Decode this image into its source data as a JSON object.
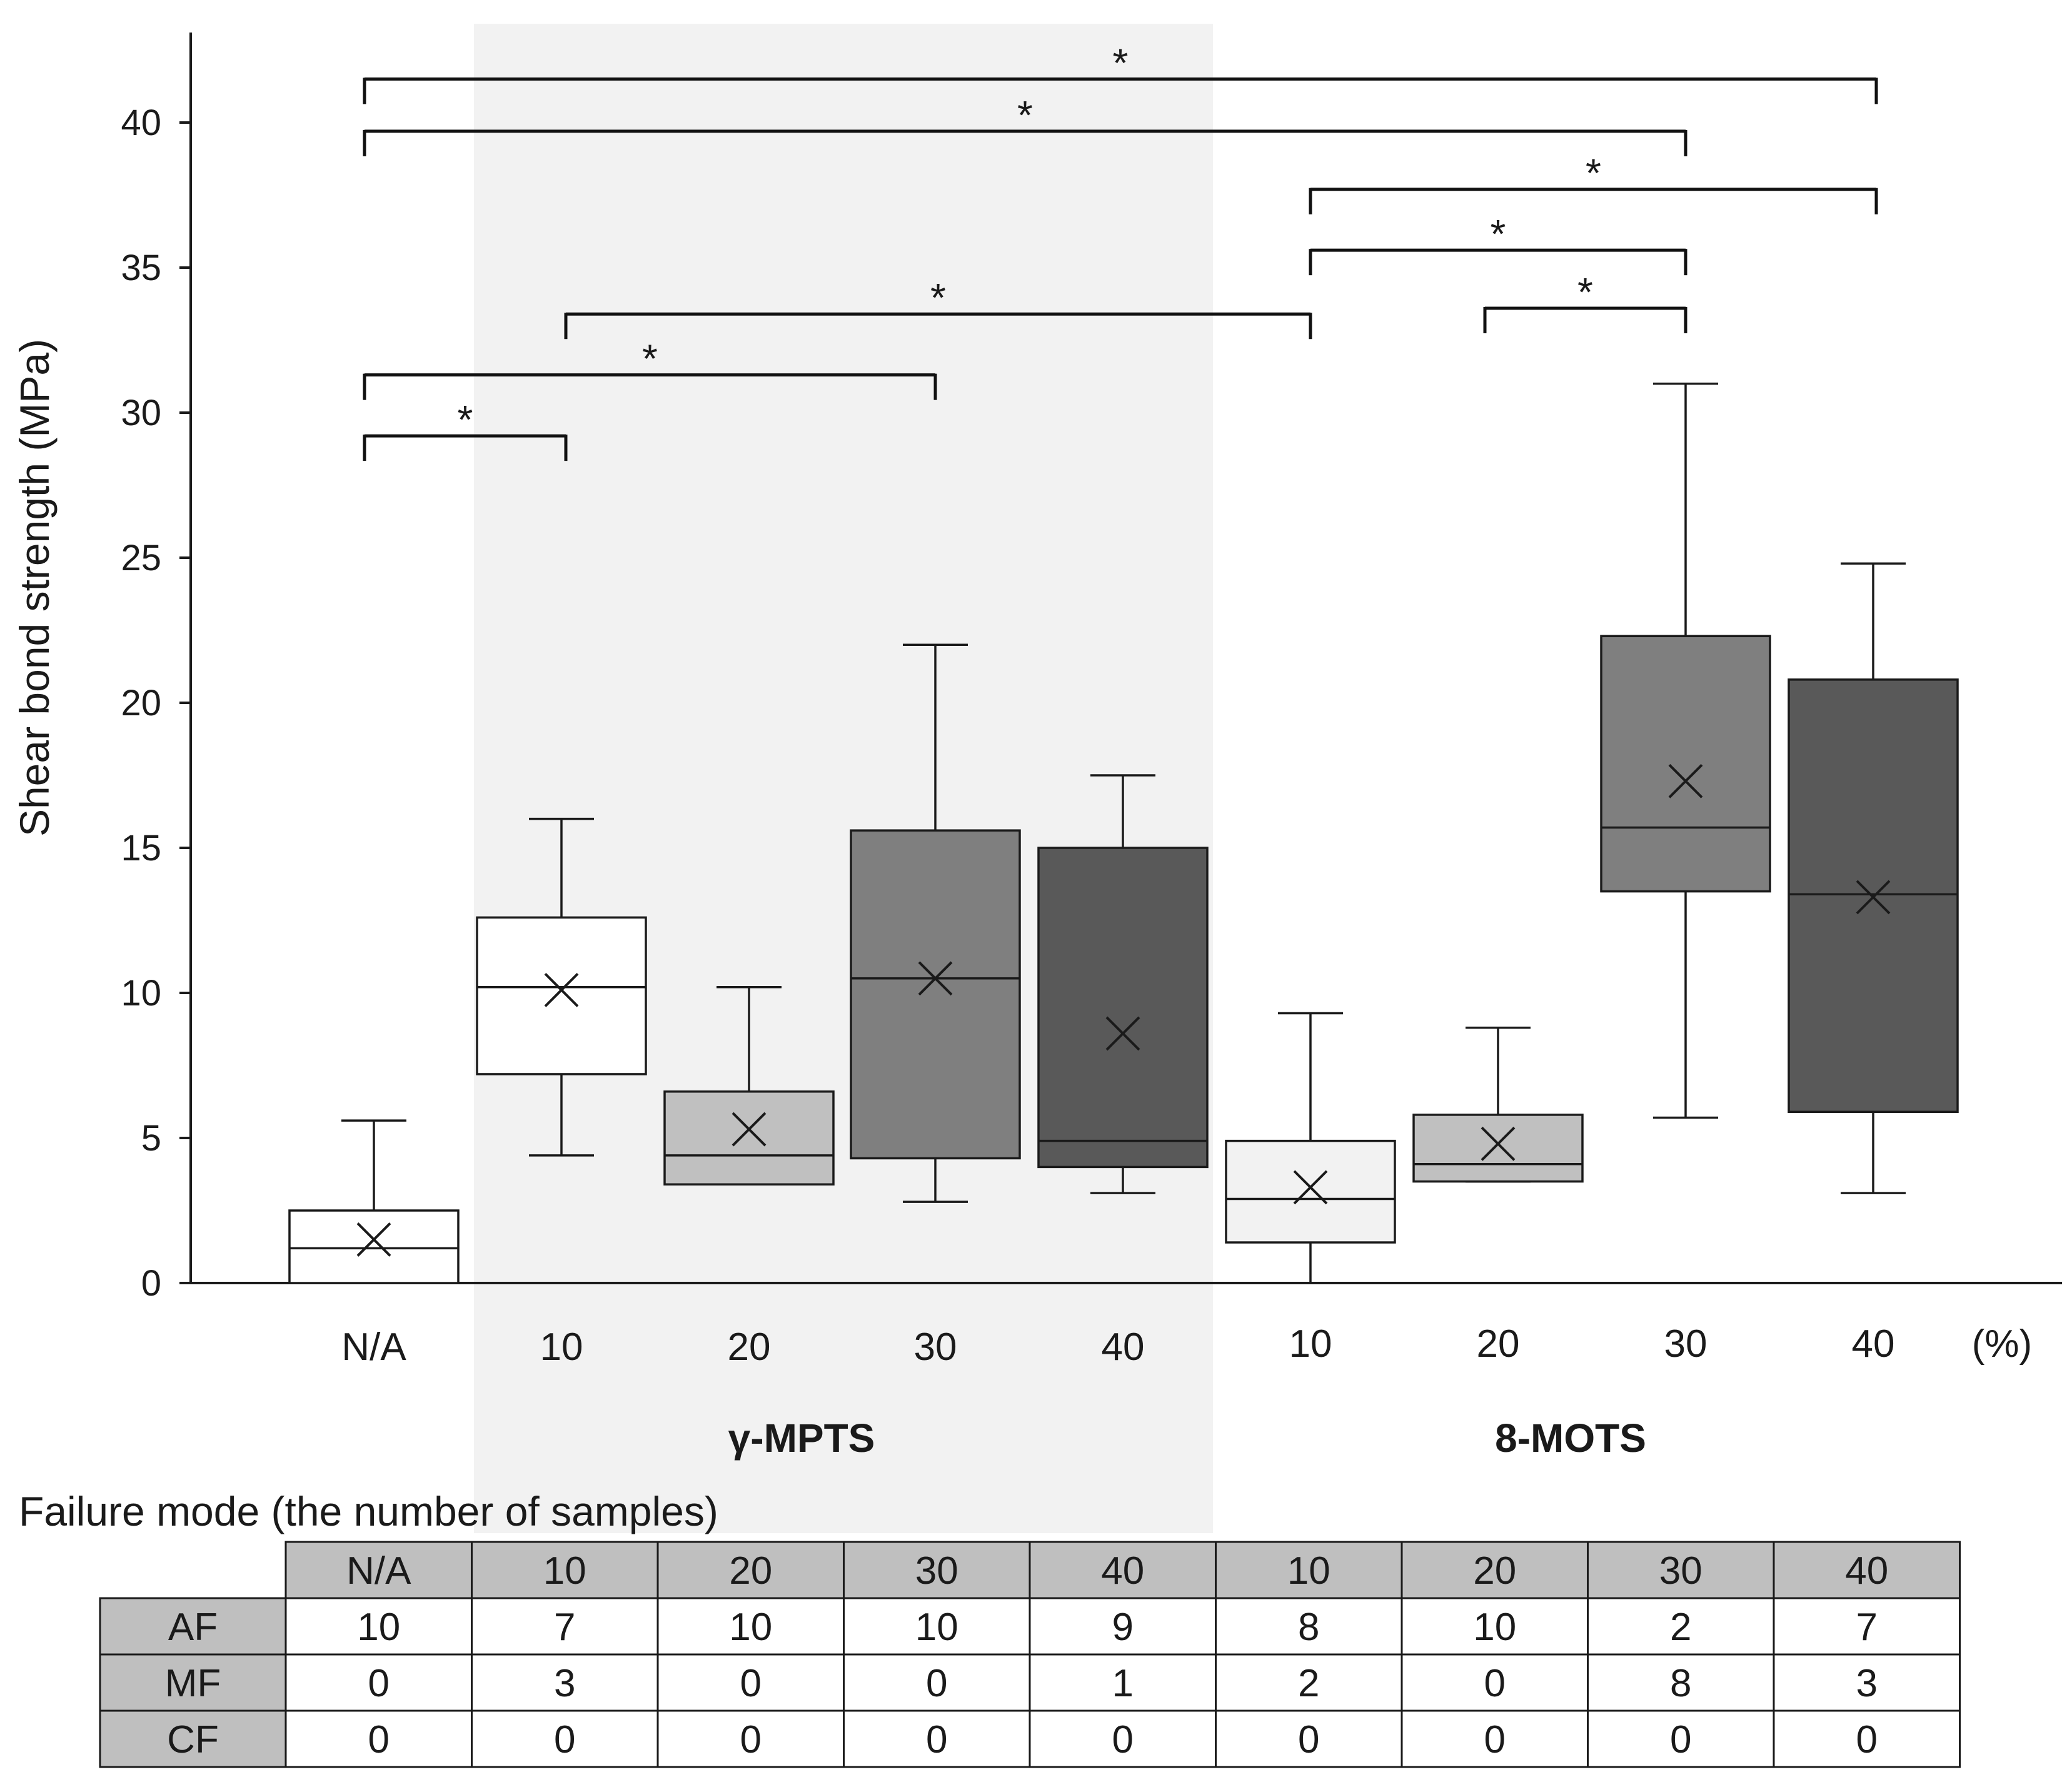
{
  "chart_data": {
    "type": "box",
    "ylabel": "Shear bond strength (MPa)",
    "ylim": [
      0,
      43
    ],
    "yticks": [
      0,
      5,
      10,
      15,
      20,
      25,
      30,
      35,
      40
    ],
    "x_unit": "(%)",
    "categories": [
      "N/A",
      "10",
      "20",
      "30",
      "40",
      "10",
      "20",
      "30",
      "40"
    ],
    "groups": [
      {
        "name": "γ-MPTS",
        "categories": [
          "10",
          "20",
          "30",
          "40"
        ],
        "shaded": true
      },
      {
        "name": "8-MOTS",
        "categories": [
          "10",
          "20",
          "30",
          "40"
        ],
        "shaded": false
      }
    ],
    "boxes": [
      {
        "label": "N/A",
        "whisker_low": 0,
        "q1": 0,
        "median": 1.2,
        "q3": 2.5,
        "whisker_high": 5.6,
        "mean": 1.5,
        "color": "#ffffff"
      },
      {
        "label": "γ-MPTS 10",
        "whisker_low": 4.4,
        "q1": 7.2,
        "median": 10.2,
        "q3": 12.6,
        "whisker_high": 16.0,
        "mean": 10.1,
        "color": "#ffffff"
      },
      {
        "label": "γ-MPTS 20",
        "whisker_low": 3.4,
        "q1": 3.4,
        "median": 4.4,
        "q3": 6.6,
        "whisker_high": 10.2,
        "mean": 5.3,
        "color": "#c0c0c0"
      },
      {
        "label": "γ-MPTS 30",
        "whisker_low": 2.8,
        "q1": 4.3,
        "median": 10.5,
        "q3": 15.6,
        "whisker_high": 22.0,
        "mean": 10.5,
        "color": "#7f7f7f"
      },
      {
        "label": "γ-MPTS 40",
        "whisker_low": 3.1,
        "q1": 4.0,
        "median": 4.9,
        "q3": 15.0,
        "whisker_high": 17.5,
        "mean": 8.6,
        "color": "#595959"
      },
      {
        "label": "8-MOTS 10",
        "whisker_low": 0,
        "q1": 1.4,
        "median": 2.9,
        "q3": 4.9,
        "whisker_high": 9.3,
        "mean": 3.3,
        "color": "#f2f2f2"
      },
      {
        "label": "8-MOTS 20",
        "whisker_low": 3.5,
        "q1": 3.5,
        "median": 4.1,
        "q3": 5.8,
        "whisker_high": 8.8,
        "mean": 4.8,
        "color": "#c0c0c0"
      },
      {
        "label": "8-MOTS 30",
        "whisker_low": 5.7,
        "q1": 13.5,
        "median": 15.7,
        "q3": 22.3,
        "whisker_high": 31.0,
        "mean": 17.3,
        "color": "#7f7f7f"
      },
      {
        "label": "8-MOTS 40",
        "whisker_low": 3.1,
        "q1": 5.9,
        "median": 13.4,
        "q3": 20.8,
        "whisker_high": 24.8,
        "mean": 13.3,
        "color": "#595959"
      }
    ],
    "significance": [
      {
        "from": 0,
        "to": 1,
        "y": 29.2,
        "label": "*"
      },
      {
        "from": 0,
        "to": 3,
        "y": 31.3,
        "label": "*"
      },
      {
        "from": 1,
        "to": 5,
        "y": 33.4,
        "label": "*"
      },
      {
        "from": 6,
        "to": 7,
        "y": 33.6,
        "label": "*"
      },
      {
        "from": 5,
        "to": 7,
        "y": 35.6,
        "label": "*"
      },
      {
        "from": 5,
        "to": 8,
        "y": 37.7,
        "label": "*"
      },
      {
        "from": 0,
        "to": 7,
        "y": 39.7,
        "label": "*"
      },
      {
        "from": 0,
        "to": 8,
        "y": 41.5,
        "label": "*"
      }
    ]
  },
  "table": {
    "title": "Failure mode (the number of samples)",
    "header": [
      "N/A",
      "10",
      "20",
      "30",
      "40",
      "10",
      "20",
      "30",
      "40"
    ],
    "rows": [
      {
        "label": "AF",
        "values": [
          "10",
          "7",
          "10",
          "10",
          "9",
          "8",
          "10",
          "2",
          "7"
        ]
      },
      {
        "label": "MF",
        "values": [
          "0",
          "3",
          "0",
          "0",
          "1",
          "2",
          "0",
          "8",
          "3"
        ]
      },
      {
        "label": "CF",
        "values": [
          "0",
          "0",
          "0",
          "0",
          "0",
          "0",
          "0",
          "0",
          "0"
        ]
      }
    ]
  }
}
